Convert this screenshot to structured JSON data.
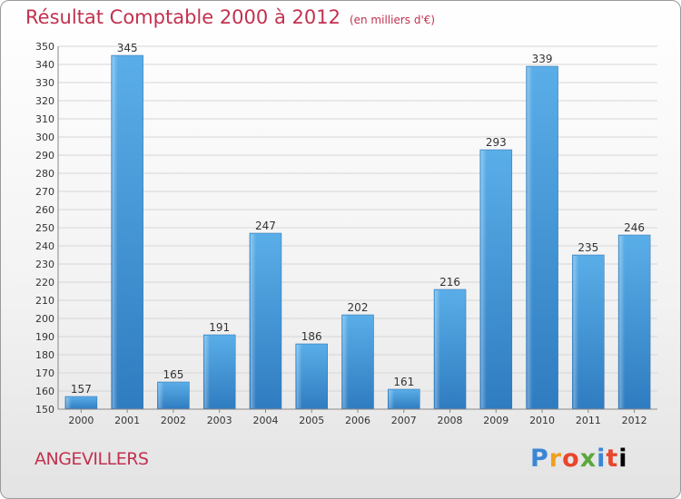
{
  "header": {
    "title": "Résultat Comptable 2000 à 2012",
    "unit": "(en milliers d'€)"
  },
  "commune": "ANGEVILLERS",
  "logo": {
    "letters": [
      "P",
      "r",
      "o",
      "x",
      "i",
      "t",
      "i"
    ]
  },
  "colors": {
    "title": "#c2314f",
    "bar_light": "#5aaee8",
    "bar_dark": "#2f7cc0",
    "grid": "#d6d6d6"
  },
  "chart_data": {
    "type": "bar",
    "title": "Résultat Comptable 2000 à 2012",
    "subtitle": "(en milliers d'€)",
    "xlabel": "",
    "ylabel": "",
    "categories": [
      "2000",
      "2001",
      "2002",
      "2003",
      "2004",
      "2005",
      "2006",
      "2007",
      "2008",
      "2009",
      "2010",
      "2011",
      "2012"
    ],
    "values": [
      157,
      345,
      165,
      191,
      247,
      186,
      202,
      161,
      216,
      293,
      339,
      235,
      246
    ],
    "ylim": [
      150,
      350
    ],
    "yticks": [
      150,
      160,
      170,
      180,
      190,
      200,
      210,
      220,
      230,
      240,
      250,
      260,
      270,
      280,
      290,
      300,
      310,
      320,
      330,
      340,
      350
    ],
    "grid": true,
    "data_labels": true
  }
}
